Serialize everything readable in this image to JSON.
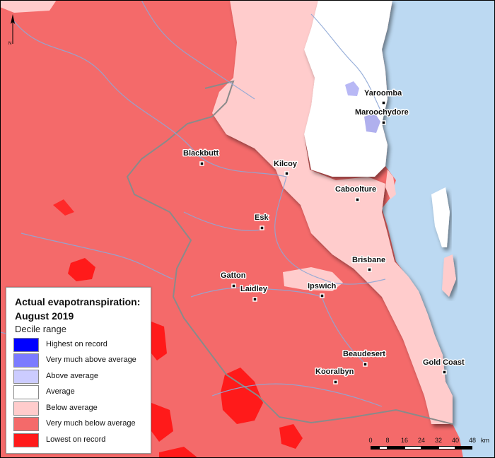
{
  "legend": {
    "title_line1": "Actual evapotranspiration:",
    "title_line2": "August 2019",
    "subtitle": "Decile range",
    "items": [
      {
        "label": "Highest on record",
        "color": "#0000ff"
      },
      {
        "label": "Very much above average",
        "color": "#7b7bff"
      },
      {
        "label": "Above average",
        "color": "#ccccff"
      },
      {
        "label": "Average",
        "color": "#ffffff"
      },
      {
        "label": "Below average",
        "color": "#ffcccc"
      },
      {
        "label": "Very much below average",
        "color": "#f46a6a"
      },
      {
        "label": "Lowest on record",
        "color": "#ff1a1a"
      }
    ]
  },
  "towns": [
    {
      "name": "Yaroomba"
    },
    {
      "name": "Maroochydore"
    },
    {
      "name": "Blackbutt"
    },
    {
      "name": "Kilcoy"
    },
    {
      "name": "Caboolture"
    },
    {
      "name": "Esk"
    },
    {
      "name": "Brisbane"
    },
    {
      "name": "Gatton"
    },
    {
      "name": "Laidley"
    },
    {
      "name": "Ipswich"
    },
    {
      "name": "Beaudesert"
    },
    {
      "name": "Gold Coast"
    },
    {
      "name": "Kooralbyn"
    }
  ],
  "scale": {
    "ticks": [
      "0",
      "8",
      "16",
      "24",
      "32",
      "40",
      "48"
    ],
    "unit": "km"
  },
  "north_label": "N",
  "colors": {
    "ocean": "#bcd9f2",
    "river": "#8fa8d6",
    "boundary": "#8a8a8a"
  }
}
